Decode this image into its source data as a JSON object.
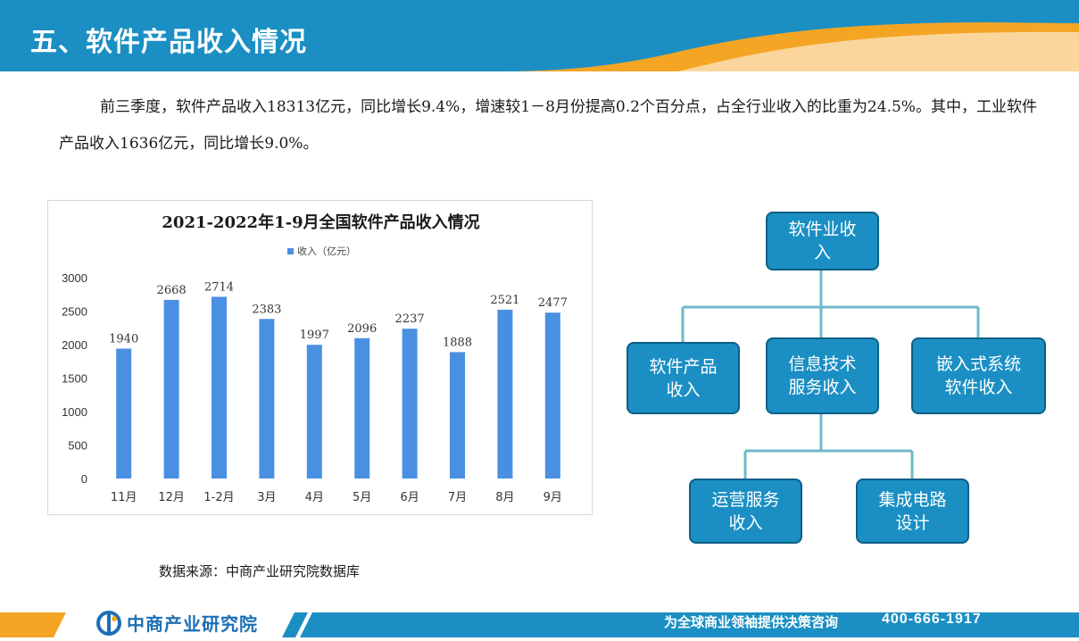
{
  "header": {
    "title": "五、软件产品收入情况"
  },
  "paragraph": {
    "text": "前三季度，软件产品收入18313亿元，同比增长9.4%，增速较1－8月份提高0.2个百分点，占全行业收入的比重为24.5%。其中，工业软件产品收入1636亿元，同比增长9.0%。"
  },
  "chart_data": {
    "type": "bar",
    "title": "2021-2022年1-9月全国软件产品收入情况",
    "legend": [
      "收入（亿元）"
    ],
    "legend_position": "top",
    "categories": [
      "11月",
      "12月",
      "1-2月",
      "3月",
      "4月",
      "5月",
      "6月",
      "7月",
      "8月",
      "9月"
    ],
    "series": [
      {
        "name": "收入（亿元）",
        "values": [
          1940,
          2668,
          2714,
          2383,
          1997,
          2096,
          2237,
          1888,
          2521,
          2477
        ]
      }
    ],
    "ylim": [
      0,
      3000
    ],
    "yticks": [
      0,
      500,
      1000,
      1500,
      2000,
      2500,
      3000
    ],
    "grid": false,
    "colors": {
      "bar": "#4a90e2"
    }
  },
  "source": "数据来源：中商产业研究院数据库",
  "org": {
    "root": "软件业收\n入",
    "level1": [
      "软件产品\n收入",
      "信息技术\n服务收入",
      "嵌入式系统\n软件收入"
    ],
    "level2": [
      "运营服务\n收入",
      "集成电路\n设计"
    ]
  },
  "footer": {
    "logo_text": "中商产业研究院",
    "slogan": "为全球商业领袖提供决策咨询",
    "phone": "400-666-1917"
  },
  "colors": {
    "accent": "#1b8fc3",
    "orange": "#f5a524",
    "dark_blue": "#0d5f86"
  }
}
